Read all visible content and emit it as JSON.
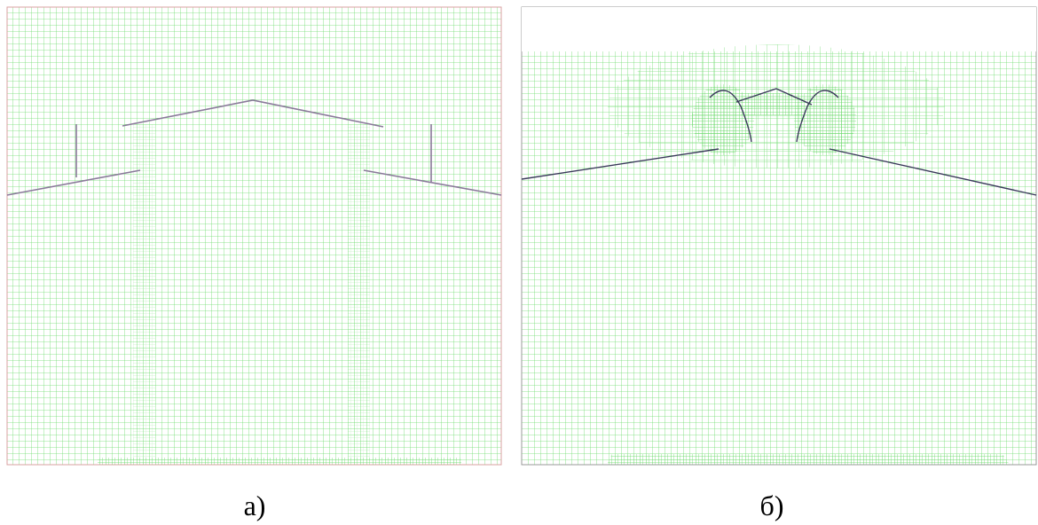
{
  "panels": [
    {
      "caption": "а)"
    },
    {
      "caption": "б)"
    }
  ]
}
